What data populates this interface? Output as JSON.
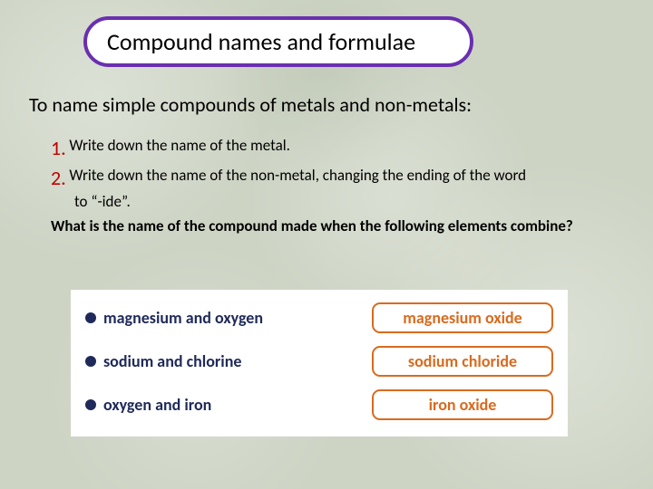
{
  "colors": {
    "title_border": "#6a2fb0",
    "step_number": "#c00000",
    "bullet": "#1f2a5a",
    "pair_text": "#1f2a5a",
    "answer_border": "#d96b1f",
    "answer_text": "#d96b1f"
  },
  "title": "Compound names and formulae",
  "intro": "To name simple compounds of metals and non-metals:",
  "steps": {
    "s1": {
      "num": "1.",
      "text": "Write down the name of the metal."
    },
    "s2": {
      "num": "2.",
      "text": "Write down the name of the non-metal, changing the ending of the word",
      "cont": "to “-ide”."
    }
  },
  "question": "What is the name of the compound made when the following elements combine?",
  "answers": {
    "r1": {
      "pair": "magnesium and oxygen",
      "name": "magnesium oxide"
    },
    "r2": {
      "pair": "sodium and chlorine",
      "name": "sodium chloride"
    },
    "r3": {
      "pair": "oxygen and iron",
      "name": "iron oxide"
    }
  }
}
